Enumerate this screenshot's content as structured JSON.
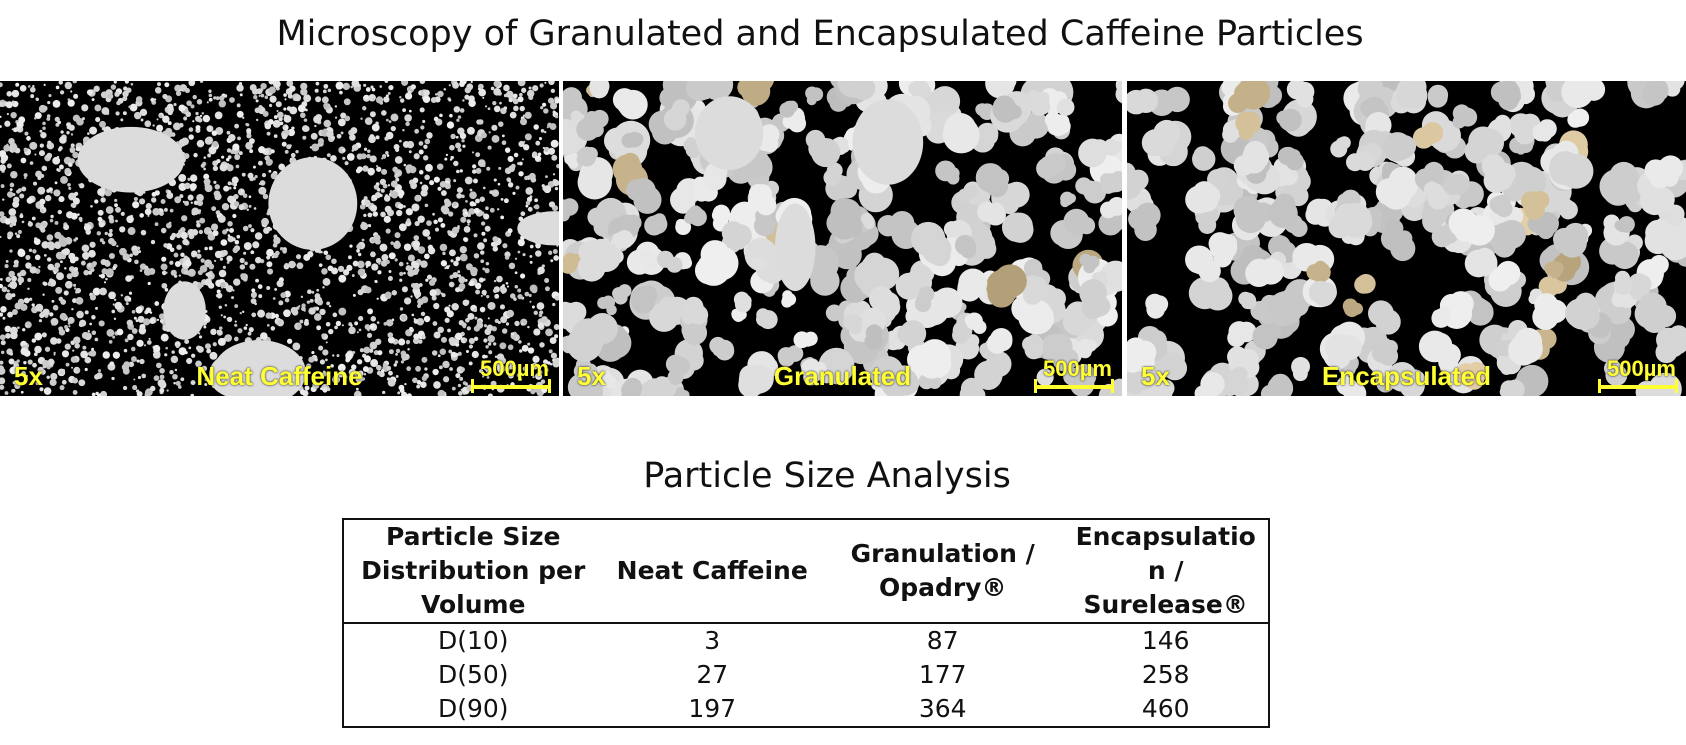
{
  "title": "Microscopy of Granulated and Encapsulated Caffeine Particles",
  "panels": [
    {
      "magnification": "5x",
      "label": "Neat Caffeine",
      "scale_bar": "500µm"
    },
    {
      "magnification": "5x",
      "label": "Granulated",
      "scale_bar": "500µm"
    },
    {
      "magnification": "5x",
      "label": "Encapsulated",
      "scale_bar": "500µm"
    }
  ],
  "table": {
    "title": "Particle Size Analysis",
    "header": [
      "Particle Size Distribution per Volume",
      "Neat Caffeine",
      "Granulation / Opadry®",
      "Encapsulation / Surelease®"
    ],
    "rows": [
      [
        "D(10)",
        3,
        87,
        146
      ],
      [
        "D(50)",
        27,
        177,
        258
      ],
      [
        "D(90)",
        197,
        364,
        460
      ]
    ]
  }
}
